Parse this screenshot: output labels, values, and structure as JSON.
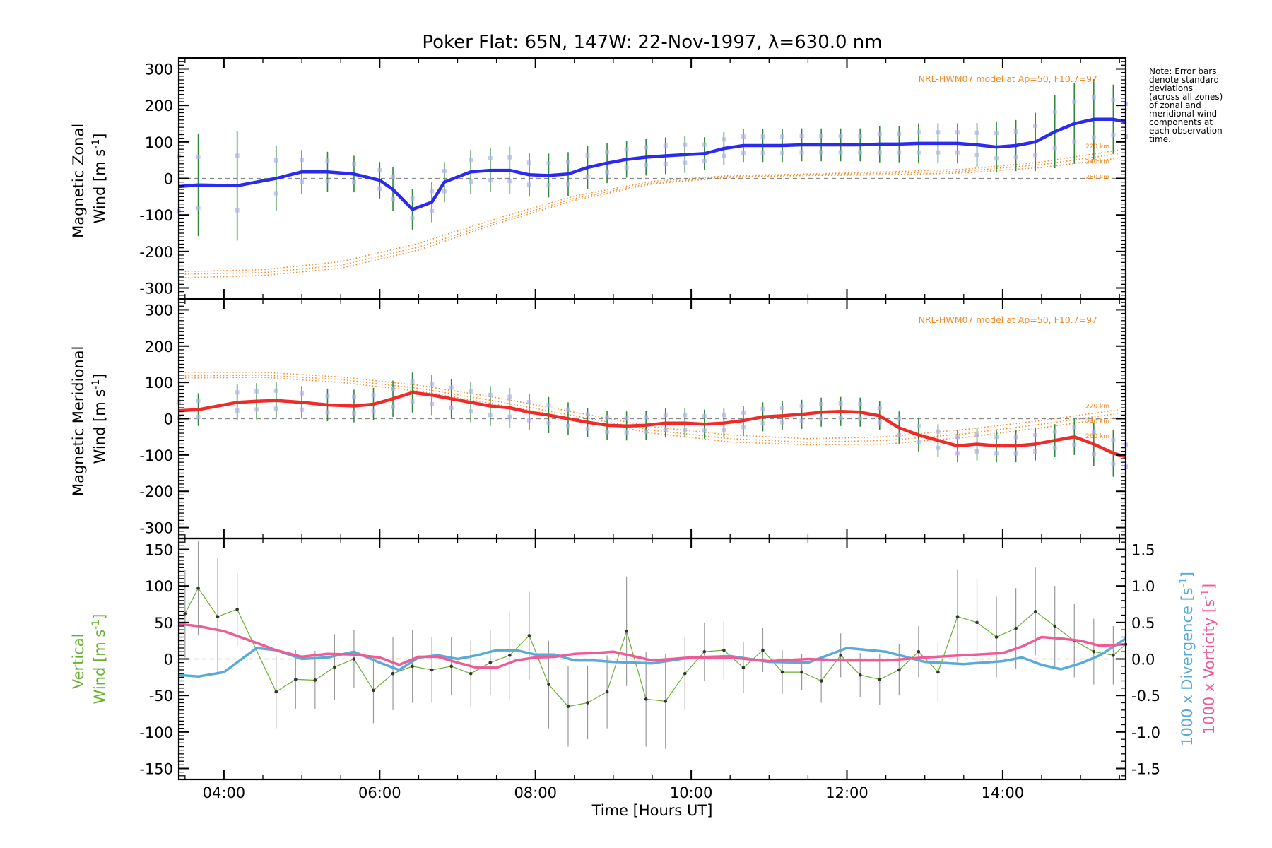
{
  "chart_data": [
    {
      "type": "line",
      "panel": "zonal",
      "title": "Poker Flat: 65N, 147W: 22-Nov-1997, λ=630.0 nm",
      "ylabel_line1": "Magnetic Zonal",
      "ylabel_line2": "Wind [m s",
      "ylabel_sup": "-1",
      "ylabel_close": "]",
      "ylim": [
        -330,
        330
      ],
      "yticks": [
        -300,
        -200,
        -100,
        0,
        100,
        200,
        300
      ],
      "model_label": "NRL-HWM07 model at Ap=50, F10.7=97",
      "model_alt_labels": [
        "220 km",
        "240 km",
        "260 km"
      ],
      "note": [
        "Note: Error bars",
        "denote standard",
        "deviations",
        "(across all zones)",
        "of zonal and",
        "meridional wind",
        "components at",
        "each observation",
        "time."
      ],
      "series": [
        {
          "name": "Magnetic Zonal Wind",
          "color": "#2a2af0",
          "x": [
            3.42,
            3.67,
            4.17,
            4.67,
            5.0,
            5.33,
            5.67,
            6.0,
            6.17,
            6.42,
            6.67,
            6.83,
            7.17,
            7.42,
            7.67,
            7.92,
            8.17,
            8.42,
            8.67,
            8.92,
            9.17,
            9.42,
            9.67,
            9.92,
            10.17,
            10.42,
            10.67,
            10.92,
            11.17,
            11.42,
            11.67,
            11.92,
            12.17,
            12.42,
            12.67,
            12.92,
            13.17,
            13.42,
            13.67,
            13.92,
            14.17,
            14.42,
            14.67,
            14.92,
            15.17,
            15.42,
            15.58
          ],
          "y": [
            -22,
            -18,
            -20,
            0,
            18,
            18,
            12,
            -5,
            -30,
            -85,
            -65,
            -10,
            18,
            22,
            22,
            10,
            8,
            12,
            30,
            42,
            52,
            58,
            62,
            65,
            68,
            82,
            90,
            90,
            90,
            92,
            92,
            92,
            92,
            94,
            94,
            96,
            96,
            96,
            92,
            86,
            90,
            100,
            128,
            150,
            162,
            162,
            155
          ],
          "err": [
            150,
            140,
            150,
            90,
            60,
            55,
            50,
            50,
            60,
            55,
            55,
            55,
            60,
            60,
            65,
            60,
            60,
            60,
            60,
            55,
            50,
            50,
            50,
            50,
            45,
            45,
            45,
            45,
            45,
            45,
            45,
            45,
            45,
            50,
            50,
            55,
            55,
            55,
            60,
            70,
            70,
            80,
            100,
            110,
            110,
            95,
            90
          ]
        }
      ],
      "model_series": [
        {
          "name": "220 km",
          "x": [
            3.5,
            4.5,
            5.5,
            6.5,
            7.5,
            8.5,
            9.5,
            10.5,
            11.5,
            12.5,
            13.5,
            14.5,
            15.5
          ],
          "y": [
            -255,
            -250,
            -228,
            -178,
            -110,
            -48,
            -8,
            8,
            12,
            18,
            25,
            45,
            78
          ]
        },
        {
          "name": "240 km",
          "x": [
            3.5,
            4.5,
            5.5,
            6.5,
            7.5,
            8.5,
            9.5,
            10.5,
            11.5,
            12.5,
            13.5,
            14.5,
            15.5
          ],
          "y": [
            -262,
            -258,
            -238,
            -188,
            -118,
            -55,
            -12,
            5,
            10,
            14,
            20,
            38,
            68
          ]
        },
        {
          "name": "260 km",
          "x": [
            3.5,
            4.5,
            5.5,
            6.5,
            7.5,
            8.5,
            9.5,
            10.5,
            11.5,
            12.5,
            13.5,
            14.5,
            15.5
          ],
          "y": [
            -272,
            -266,
            -246,
            -196,
            -124,
            -60,
            -15,
            3,
            8,
            10,
            15,
            30,
            56
          ]
        }
      ]
    },
    {
      "type": "line",
      "panel": "meridional",
      "ylabel_line1": "Magnetic Meridional",
      "ylabel_line2": "Wind [m s",
      "ylabel_sup": "-1",
      "ylabel_close": "]",
      "ylim": [
        -330,
        330
      ],
      "yticks": [
        -300,
        -200,
        -100,
        0,
        100,
        200,
        300
      ],
      "model_label": "NRL-HWM07 model at Ap=50, F10.7=97",
      "model_alt_labels": [
        "220 km",
        "240 km",
        "260 km"
      ],
      "series": [
        {
          "name": "Magnetic Meridional Wind",
          "color": "#f02a2a",
          "x": [
            3.42,
            3.67,
            4.17,
            4.42,
            4.67,
            5.0,
            5.33,
            5.67,
            5.92,
            6.17,
            6.42,
            6.67,
            6.92,
            7.17,
            7.42,
            7.67,
            7.92,
            8.17,
            8.42,
            8.67,
            8.92,
            9.17,
            9.42,
            9.67,
            9.92,
            10.17,
            10.42,
            10.67,
            10.92,
            11.17,
            11.42,
            11.67,
            11.92,
            12.17,
            12.42,
            12.67,
            12.92,
            13.17,
            13.42,
            13.67,
            13.92,
            14.17,
            14.42,
            14.67,
            14.92,
            15.17,
            15.42,
            15.58
          ],
          "y": [
            22,
            25,
            45,
            48,
            50,
            45,
            38,
            35,
            40,
            55,
            72,
            65,
            55,
            45,
            35,
            30,
            18,
            10,
            0,
            -10,
            -18,
            -20,
            -18,
            -12,
            -12,
            -15,
            -12,
            -5,
            5,
            8,
            12,
            18,
            20,
            18,
            8,
            -25,
            -45,
            -60,
            -75,
            -70,
            -75,
            -75,
            -70,
            -60,
            -50,
            -70,
            -95,
            -105
          ],
          "err": [
            45,
            45,
            50,
            50,
            50,
            45,
            45,
            45,
            45,
            50,
            55,
            55,
            55,
            55,
            55,
            55,
            50,
            50,
            45,
            40,
            40,
            40,
            40,
            40,
            40,
            40,
            40,
            40,
            40,
            40,
            40,
            40,
            40,
            40,
            40,
            45,
            45,
            45,
            45,
            45,
            45,
            45,
            45,
            45,
            50,
            60,
            65,
            60
          ]
        }
      ],
      "model_series": [
        {
          "name": "220 km",
          "x": [
            3.5,
            4.5,
            5.5,
            6.5,
            7.5,
            8.5,
            9.5,
            10.5,
            11.5,
            12.5,
            13.5,
            14.5,
            15.5
          ],
          "y": [
            128,
            128,
            115,
            92,
            58,
            18,
            -22,
            -45,
            -55,
            -50,
            -30,
            -5,
            25
          ]
        },
        {
          "name": "240 km",
          "x": [
            3.5,
            4.5,
            5.5,
            6.5,
            7.5,
            8.5,
            9.5,
            10.5,
            11.5,
            12.5,
            13.5,
            14.5,
            15.5
          ],
          "y": [
            118,
            120,
            108,
            84,
            48,
            8,
            -32,
            -55,
            -65,
            -60,
            -42,
            -15,
            15
          ]
        },
        {
          "name": "260 km",
          "x": [
            3.5,
            4.5,
            5.5,
            6.5,
            7.5,
            8.5,
            9.5,
            10.5,
            11.5,
            12.5,
            13.5,
            14.5,
            15.5
          ],
          "y": [
            112,
            114,
            100,
            76,
            40,
            0,
            -40,
            -64,
            -72,
            -70,
            -52,
            -25,
            5
          ]
        }
      ]
    },
    {
      "type": "line",
      "panel": "vertical",
      "ylabel_line1": "Vertical",
      "ylabel_line2": "Wind [m s",
      "ylabel_sup": "-1",
      "ylabel_close": "]",
      "ylim": [
        -165,
        165
      ],
      "yticks": [
        -150,
        -100,
        -50,
        0,
        50,
        100,
        150
      ],
      "y2lim": [
        -1.65,
        1.65
      ],
      "y2ticks": [
        -1.5,
        -1.0,
        -0.5,
        0.0,
        0.5,
        1.0,
        1.5
      ],
      "y2label_div": "1000 x Divergence [s",
      "y2label_vort": "1000 x Vorticity [s",
      "y2label_sup": "-1",
      "y2label_close": "]",
      "xlabel": "Time [Hours UT]",
      "xlim": [
        3.42,
        15.58
      ],
      "xticks": [
        4,
        6,
        8,
        10,
        12,
        14
      ],
      "xticklabels": [
        "04:00",
        "06:00",
        "08:00",
        "10:00",
        "12:00",
        "14:00"
      ],
      "series": [
        {
          "name": "Vertical Wind",
          "color": "#6ab030",
          "x": [
            3.5,
            3.67,
            3.92,
            4.17,
            4.67,
            4.92,
            5.17,
            5.42,
            5.67,
            5.92,
            6.17,
            6.42,
            6.67,
            6.92,
            7.17,
            7.42,
            7.67,
            7.92,
            8.17,
            8.42,
            8.67,
            8.92,
            9.17,
            9.42,
            9.67,
            9.92,
            10.17,
            10.42,
            10.67,
            10.92,
            11.17,
            11.42,
            11.67,
            11.92,
            12.17,
            12.42,
            12.67,
            12.92,
            13.17,
            13.42,
            13.67,
            13.92,
            14.17,
            14.42,
            14.67,
            14.92,
            15.17,
            15.42,
            15.58
          ],
          "y": [
            62,
            97,
            58,
            68,
            -45,
            -28,
            -29,
            -11,
            0,
            -43,
            -20,
            -10,
            -15,
            -10,
            -20,
            -5,
            5,
            32,
            -35,
            -65,
            -60,
            -45,
            38,
            -55,
            -58,
            -20,
            10,
            12,
            -12,
            12,
            -18,
            -18,
            -30,
            5,
            -22,
            -28,
            -15,
            10,
            -18,
            58,
            50,
            30,
            42,
            65,
            45,
            25,
            10,
            5,
            20
          ],
          "err": [
            60,
            65,
            80,
            50,
            50,
            40,
            40,
            45,
            40,
            45,
            50,
            50,
            45,
            40,
            45,
            45,
            60,
            60,
            60,
            55,
            50,
            50,
            75,
            65,
            65,
            50,
            40,
            40,
            35,
            30,
            30,
            25,
            30,
            30,
            30,
            35,
            35,
            35,
            40,
            65,
            60,
            55,
            55,
            60,
            55,
            50,
            45,
            40,
            40
          ]
        },
        {
          "name": "1000 x Divergence",
          "color": "#5aaad8",
          "axis": "right",
          "x": [
            3.42,
            3.67,
            4.0,
            4.42,
            4.67,
            5.0,
            5.33,
            5.67,
            6.0,
            6.25,
            6.5,
            6.75,
            7.0,
            7.25,
            7.5,
            7.75,
            8.0,
            8.25,
            8.5,
            8.75,
            9.0,
            9.5,
            10.0,
            10.5,
            11.0,
            11.5,
            12.0,
            12.5,
            13.0,
            13.5,
            14.0,
            14.25,
            14.5,
            14.75,
            15.0,
            15.25,
            15.58
          ],
          "y": [
            -0.22,
            -0.24,
            -0.18,
            0.15,
            0.12,
            0.0,
            0.02,
            0.1,
            -0.05,
            -0.15,
            0.02,
            0.05,
            0.0,
            0.05,
            0.12,
            0.12,
            0.06,
            0.06,
            -0.02,
            -0.02,
            -0.04,
            -0.06,
            0.02,
            0.04,
            -0.04,
            -0.05,
            0.15,
            0.1,
            -0.04,
            -0.07,
            -0.03,
            0.02,
            -0.08,
            -0.14,
            -0.06,
            0.05,
            0.28
          ]
        },
        {
          "name": "1000 x Vorticity",
          "color": "#f05a96",
          "axis": "right",
          "x": [
            3.42,
            3.67,
            4.0,
            4.42,
            4.67,
            5.0,
            5.33,
            5.67,
            6.0,
            6.25,
            6.5,
            6.75,
            7.0,
            7.25,
            7.5,
            7.75,
            8.0,
            8.25,
            8.5,
            8.75,
            9.0,
            9.5,
            10.0,
            10.5,
            11.0,
            11.5,
            12.0,
            12.5,
            13.0,
            13.5,
            14.0,
            14.25,
            14.5,
            14.75,
            15.0,
            15.25,
            15.58
          ],
          "y": [
            0.48,
            0.45,
            0.38,
            0.22,
            0.12,
            0.03,
            0.07,
            0.06,
            0.02,
            -0.08,
            0.03,
            0.03,
            -0.05,
            -0.12,
            -0.12,
            -0.02,
            0.02,
            0.03,
            0.07,
            0.08,
            0.1,
            -0.02,
            0.02,
            0.02,
            -0.03,
            0.0,
            -0.02,
            -0.02,
            0.02,
            0.05,
            0.08,
            0.17,
            0.3,
            0.28,
            0.25,
            0.18,
            0.2
          ]
        }
      ]
    }
  ]
}
